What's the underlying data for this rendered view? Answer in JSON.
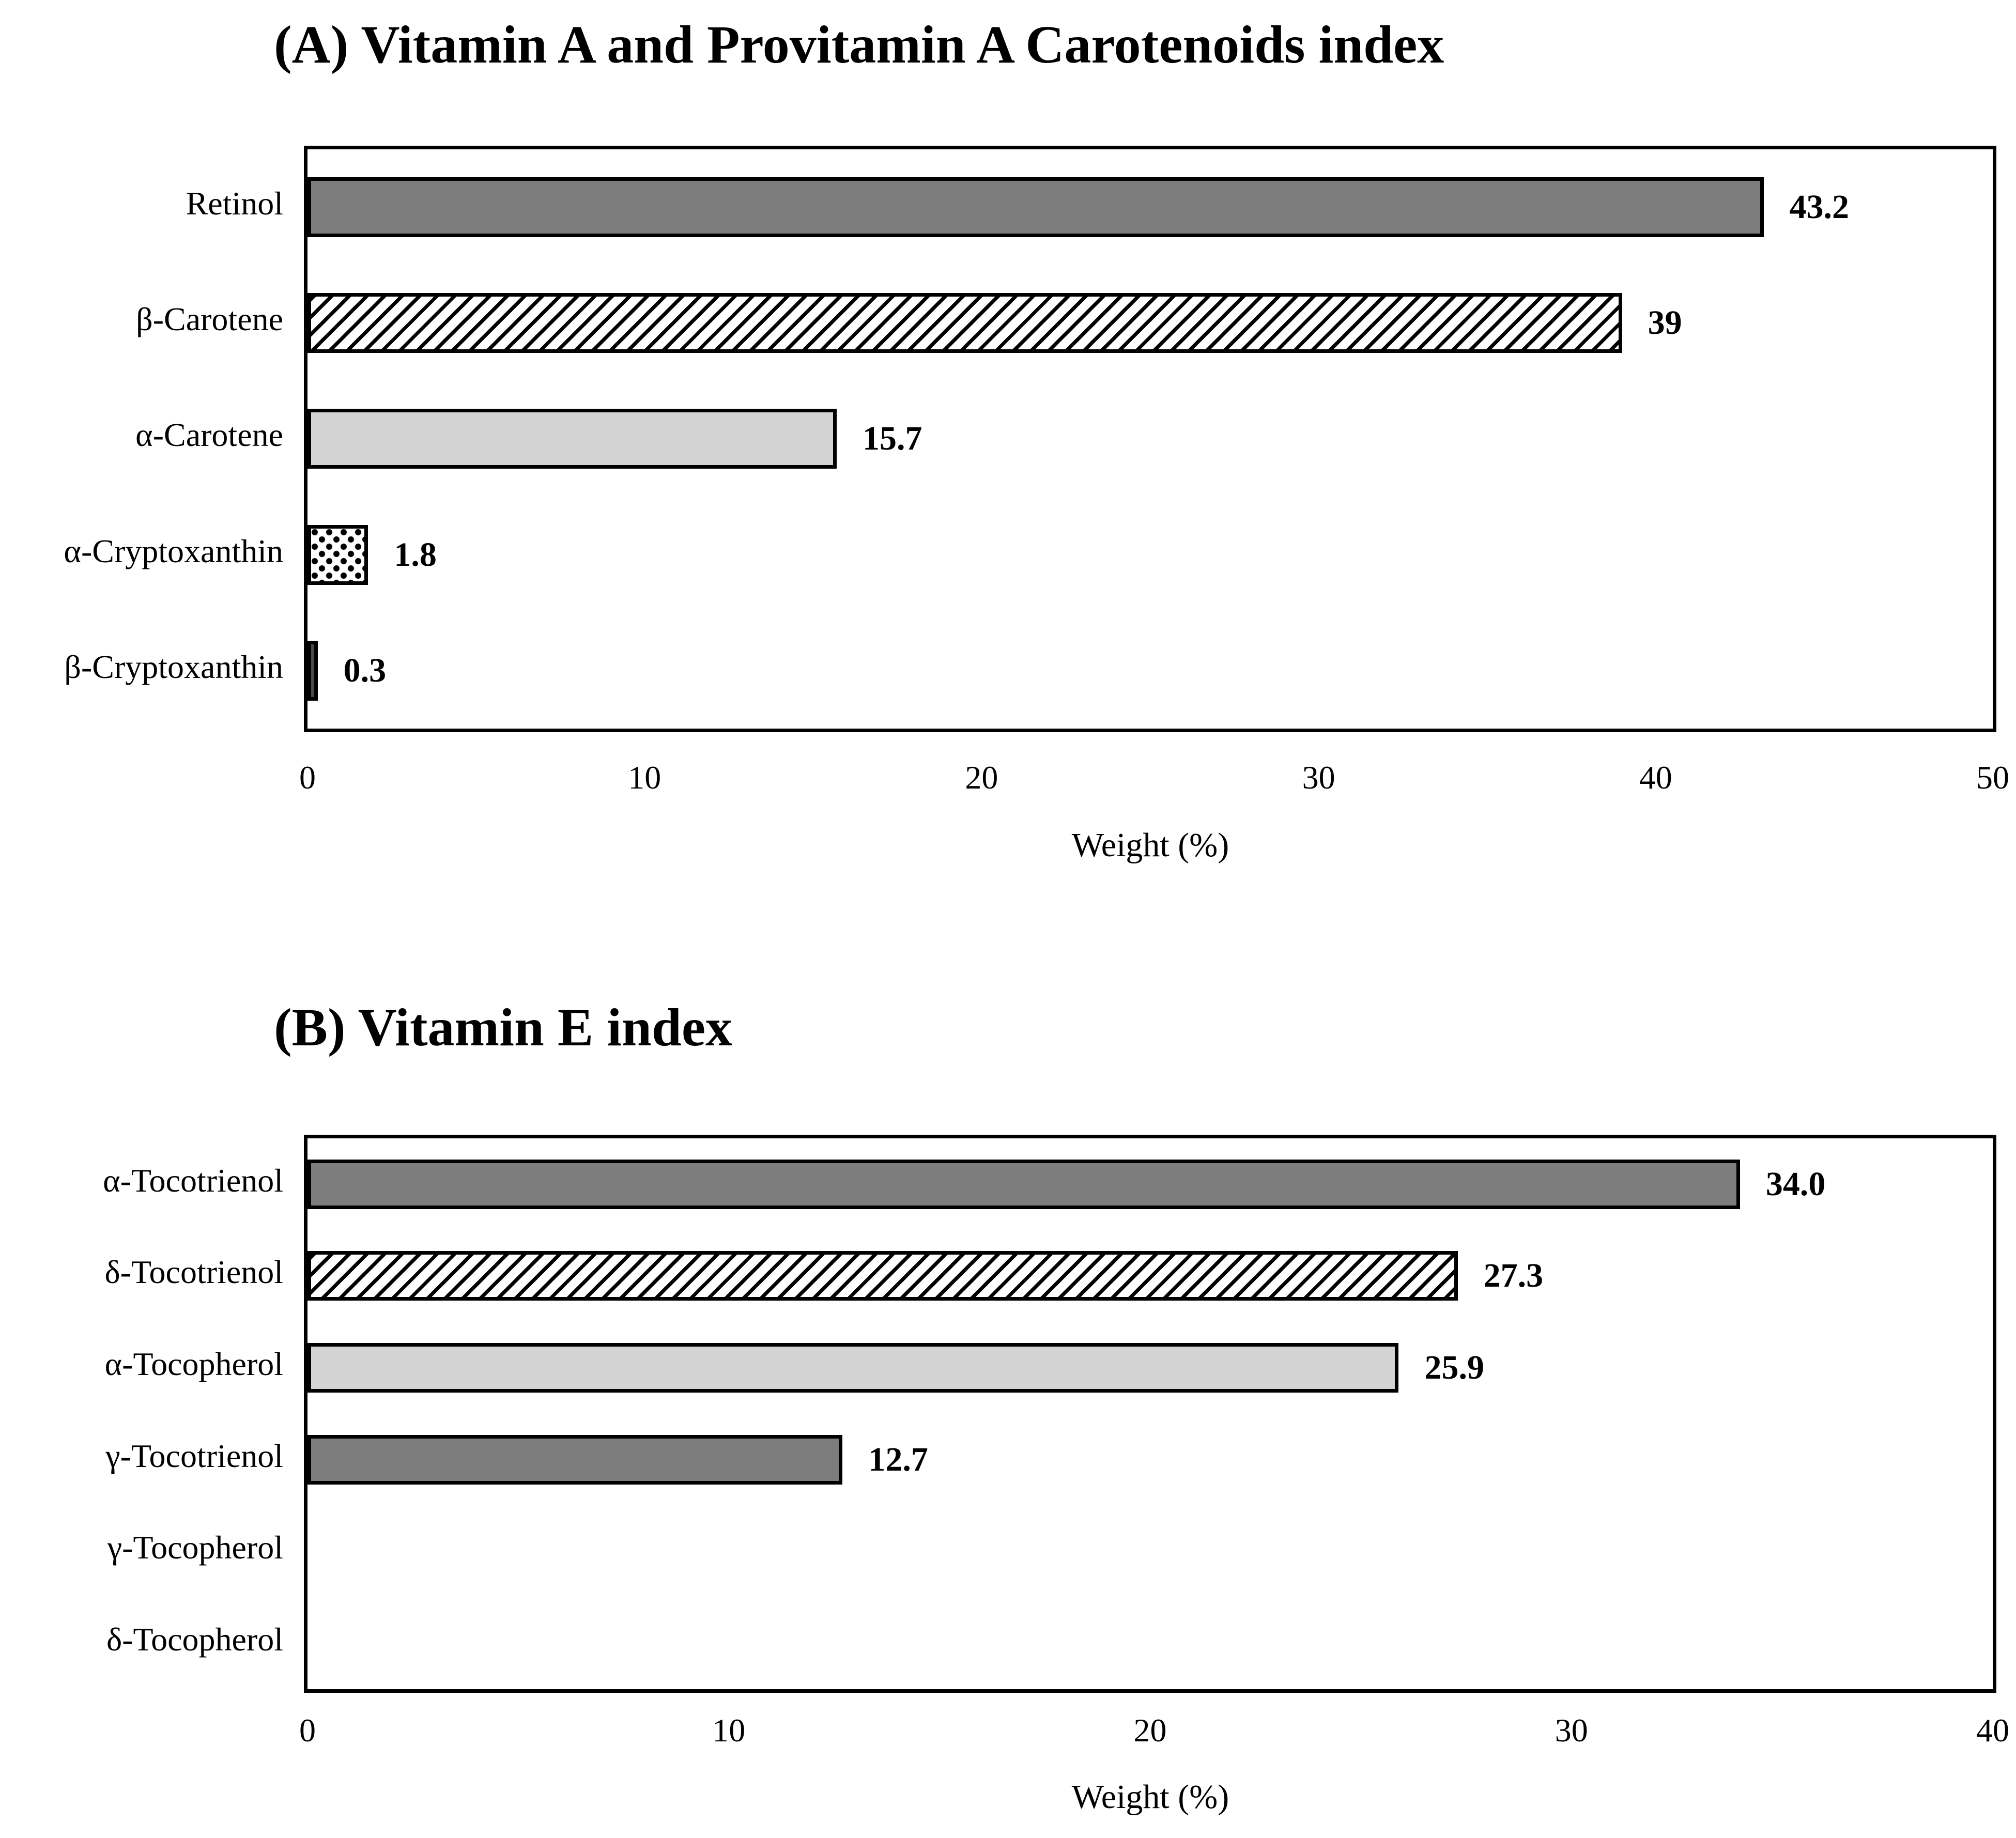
{
  "figure": {
    "background": "#ffffff",
    "panel_count": 2
  },
  "colors": {
    "line": "#000000",
    "background": "#ffffff",
    "bar_dark_gray": "#7d7d7d",
    "bar_darkest_gray": "#4a4a4a",
    "bar_light_gray": "#d3d3d3"
  },
  "chart_data": [
    {
      "type": "bar",
      "orientation": "horizontal",
      "title": "(A) Vitamin A and Provitamin A Carotenoids index",
      "xlabel": "Weight (%)",
      "xlim": [
        0,
        50
      ],
      "xticks": [
        "0",
        "10",
        "20",
        "30",
        "40",
        "50"
      ],
      "grid": false,
      "legend": null,
      "categories": [
        "Retinol",
        "β-Carotene",
        "α-Carotene",
        "α-Cryptoxanthin",
        "β-Cryptoxanthin"
      ],
      "values": [
        43.2,
        39,
        15.7,
        1.8,
        0.3
      ],
      "value_labels": [
        "43.2",
        "39",
        "15.7",
        "1.8",
        "0.3"
      ],
      "bar_patterns": [
        "solid-dark",
        "hatch-diagonal",
        "solid-light",
        "dots",
        "solid-darkest"
      ]
    },
    {
      "type": "bar",
      "orientation": "horizontal",
      "title": "(B) Vitamin E index",
      "xlabel": "Weight (%)",
      "xlim": [
        0,
        40
      ],
      "xticks": [
        "0",
        "10",
        "20",
        "30",
        "40"
      ],
      "grid": false,
      "legend": null,
      "categories": [
        "α-Tocotrienol",
        "δ-Tocotrienol",
        "α-Tocopherol",
        "γ-Tocotrienol",
        "γ-Tocopherol",
        "δ-Tocopherol"
      ],
      "values": [
        34.0,
        27.3,
        25.9,
        12.7,
        0,
        0
      ],
      "value_labels": [
        "34.0",
        "27.3",
        "25.9",
        "12.7",
        "",
        ""
      ],
      "bar_patterns": [
        "solid-dark",
        "hatch-diagonal",
        "solid-light",
        "solid-dark",
        "none",
        "none"
      ]
    }
  ]
}
